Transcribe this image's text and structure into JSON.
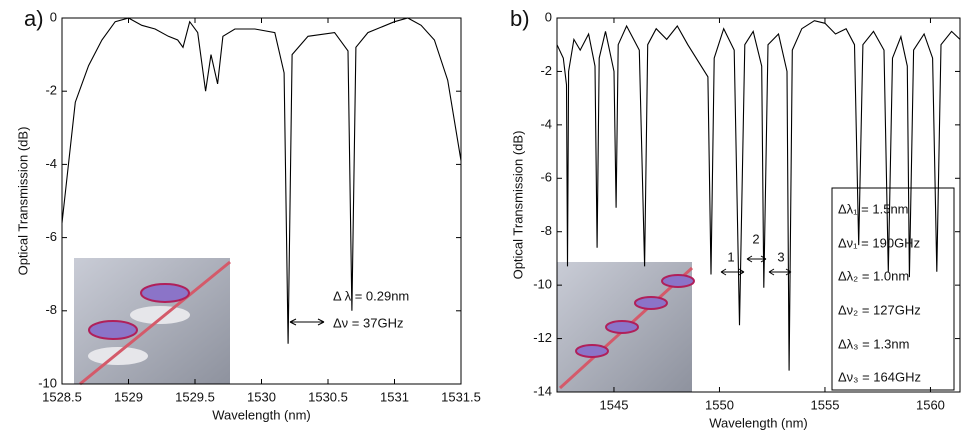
{
  "chart_data": [
    {
      "type": "line",
      "panel_label": "a)",
      "xlabel": "Wavelength (nm)",
      "ylabel": "Optical Transmission (dB)",
      "xlim": [
        1528.5,
        1531.5
      ],
      "xticks": [
        1528.5,
        1529,
        1529.5,
        1530,
        1530.5,
        1531,
        1531.5
      ],
      "ylim": [
        -10,
        0
      ],
      "yticks": [
        -10,
        -8,
        -6,
        -4,
        -2,
        0
      ],
      "color": "#000000",
      "x": [
        1528.5,
        1528.6,
        1528.7,
        1528.8,
        1528.9,
        1529.0,
        1529.1,
        1529.2,
        1529.3,
        1529.37,
        1529.41,
        1529.46,
        1529.52,
        1529.58,
        1529.62,
        1529.67,
        1529.71,
        1529.8,
        1529.95,
        1530.1,
        1530.17,
        1530.2,
        1530.23,
        1530.35,
        1530.55,
        1530.65,
        1530.68,
        1530.71,
        1530.8,
        1531.0,
        1531.1,
        1531.2,
        1531.3,
        1531.4,
        1531.5
      ],
      "y": [
        -5.6,
        -2.3,
        -1.3,
        -0.6,
        -0.1,
        0,
        -0.2,
        -0.3,
        -0.5,
        -0.6,
        -0.8,
        -0.1,
        -0.4,
        -2.0,
        -1.0,
        -1.8,
        -0.5,
        -0.3,
        -0.3,
        -0.4,
        -1.5,
        -8.9,
        -1.0,
        -0.5,
        -0.4,
        -0.9,
        -8.0,
        -0.8,
        -0.4,
        -0.1,
        0,
        -0.2,
        -0.6,
        -1.7,
        -3.9
      ],
      "annotations": [
        "Δ λ = 0.29nm",
        "Δν = 37GHz"
      ]
    },
    {
      "type": "line",
      "panel_label": "b)",
      "xlabel": "Wavelength (nm)",
      "ylabel": "Optical Transmission (dB)",
      "xlim": [
        1542.3,
        1561.4
      ],
      "xticks": [
        1545,
        1550,
        1555,
        1560
      ],
      "ylim": [
        -14,
        0
      ],
      "yticks": [
        -14,
        -12,
        -10,
        -8,
        -6,
        -4,
        -2,
        0
      ],
      "color": "#000000",
      "x": [
        1542.3,
        1542.6,
        1542.75,
        1542.8,
        1542.85,
        1543.1,
        1543.4,
        1543.8,
        1544.1,
        1544.2,
        1544.3,
        1544.6,
        1545.0,
        1545.1,
        1545.2,
        1545.6,
        1546.2,
        1546.45,
        1546.6,
        1547.0,
        1547.5,
        1548.0,
        1548.5,
        1549.45,
        1549.6,
        1549.75,
        1550.2,
        1550.7,
        1550.95,
        1551.2,
        1551.6,
        1552.0,
        1552.1,
        1552.3,
        1552.8,
        1553.2,
        1553.3,
        1553.45,
        1553.9,
        1554.5,
        1555.0,
        1555.5,
        1556.0,
        1556.4,
        1556.6,
        1556.8,
        1557.3,
        1557.8,
        1558.0,
        1558.2,
        1558.6,
        1558.9,
        1559.0,
        1559.2,
        1559.7,
        1560.1,
        1560.3,
        1560.5,
        1561.0,
        1561.4
      ],
      "y": [
        -1.0,
        -1.5,
        -2.5,
        -9.3,
        -2.0,
        -0.8,
        -1.2,
        -0.6,
        -1.8,
        -8.6,
        -1.5,
        -0.5,
        -2.0,
        -7.1,
        -1.0,
        -0.3,
        -1.2,
        -9.3,
        -1.0,
        -0.4,
        -0.8,
        -0.3,
        -1.0,
        -2.2,
        -9.6,
        -1.5,
        -0.4,
        -1.2,
        -11.5,
        -1.0,
        -0.5,
        -1.8,
        -10.1,
        -1.0,
        -0.6,
        -2.0,
        -13.2,
        -1.2,
        -0.4,
        -0.1,
        -0.2,
        -0.6,
        -0.4,
        -1.0,
        -8.5,
        -1.0,
        -0.5,
        -1.2,
        -9.5,
        -1.5,
        -0.7,
        -1.8,
        -9.7,
        -1.2,
        -0.6,
        -1.5,
        -9.5,
        -1.0,
        -0.5,
        -0.8
      ],
      "peak_labels": [
        "1",
        "2",
        "3"
      ],
      "annotations": [
        "Δλ₁ = 1.5nm",
        "Δν₁ = 190GHz",
        "Δλ₂ = 1.0nm",
        "Δν₂ = 127GHz",
        "Δλ₃ = 1.3nm",
        "Δν₃ = 164GHz"
      ]
    }
  ]
}
